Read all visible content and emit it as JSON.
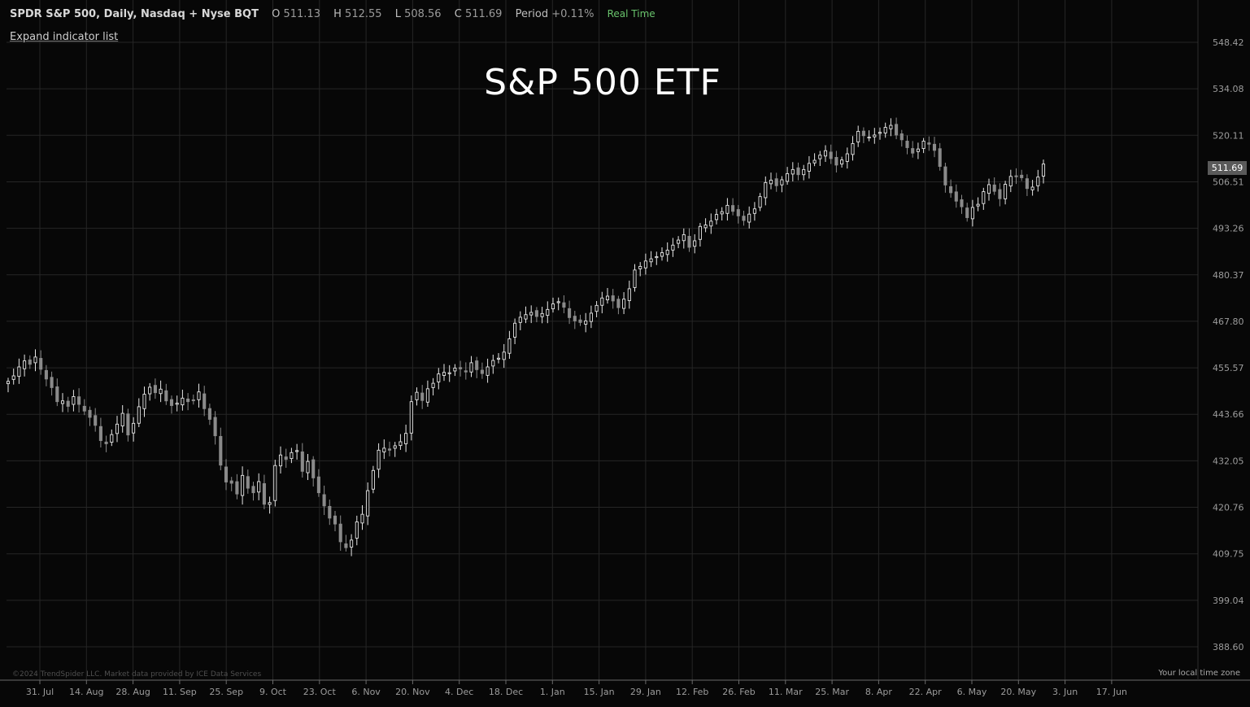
{
  "header": {
    "symbol": "SPDR S&P 500, Daily, Nasdaq + Nyse BQT",
    "o_label": "O",
    "o_value": "511.13",
    "h_label": "H",
    "h_value": "512.55",
    "l_label": "L",
    "l_value": "508.56",
    "c_label": "C",
    "c_value": "511.69",
    "period_label": "Period",
    "period_value": "+0.11%",
    "realtime": "Real Time"
  },
  "expand_label": "Expand indicator list",
  "copyright": "©2024 TrendSpider LLC. Market data provided by ICE Data Services",
  "timezone": "Your local time zone",
  "price_tag": "511.69",
  "colors": {
    "background": "#070707",
    "grid": "#262626",
    "candle": "#e6e6e6",
    "down": "#8a8a8a",
    "realtime": "#69c36c"
  },
  "chart_data": {
    "type": "candlestick",
    "title": "S&P 500 ETF",
    "ylim": [
      383,
      552
    ],
    "y_ticks": [
      "548.42",
      "534.08",
      "520.11",
      "506.51",
      "493.26",
      "480.37",
      "467.80",
      "455.57",
      "443.66",
      "432.05",
      "420.76",
      "409.75",
      "399.04",
      "388.60"
    ],
    "x_ticks": [
      "31. Jul",
      "14. Aug",
      "28. Aug",
      "11. Sep",
      "25. Sep",
      "9. Oct",
      "23. Oct",
      "6. Nov",
      "20. Nov",
      "4. Dec",
      "18. Dec",
      "1. Jan",
      "15. Jan",
      "29. Jan",
      "12. Feb",
      "26. Feb",
      "11. Mar",
      "25. Mar",
      "8. Apr",
      "22. Apr",
      "6. May",
      "20. May",
      "3. Jun",
      "17. Jun"
    ],
    "close_series": [
      452.1,
      453.5,
      455.8,
      457.4,
      456.5,
      458.4,
      455.2,
      452.7,
      450.5,
      446.9,
      447.1,
      445.7,
      448.2,
      446.2,
      444.5,
      442.9,
      440.9,
      437.1,
      436.3,
      438.6,
      441.2,
      443.9,
      438.5,
      441.4,
      445.6,
      448.8,
      450.6,
      449.2,
      450.1,
      447.1,
      445.9,
      446.5,
      447.8,
      446.9,
      447.3,
      449.4,
      445.1,
      442.4,
      438.3,
      431.0,
      426.9,
      426.6,
      424.0,
      428.5,
      425.4,
      424.3,
      427.0,
      421.5,
      421.9,
      430.9,
      433.5,
      432.4,
      434.1,
      434.6,
      429.5,
      431.9,
      427.9,
      424.3,
      421.1,
      418.2,
      416.8,
      412.6,
      411.2,
      413.0,
      417.3,
      419.1,
      424.8,
      429.7,
      434.7,
      435.2,
      434.7,
      435.8,
      436.8,
      438.9,
      446.9,
      449.3,
      447.2,
      450.2,
      451.6,
      454.0,
      454.4,
      454.3,
      455.5,
      455.3,
      454.5,
      456.9,
      455.1,
      454.1,
      455.8,
      457.5,
      458.1,
      459.7,
      463.2,
      467.3,
      468.9,
      469.6,
      470.2,
      469.1,
      469.9,
      471.0,
      472.5,
      473.1,
      471.6,
      468.8,
      467.9,
      467.5,
      467.9,
      470.0,
      472.1,
      474.1,
      474.6,
      473.3,
      471.5,
      473.8,
      476.6,
      481.7,
      482.7,
      484.2,
      484.8,
      485.4,
      486.5,
      487.2,
      488.6,
      490.0,
      491.5,
      488.0,
      489.8,
      493.8,
      494.2,
      495.3,
      497.2,
      498.0,
      499.8,
      498.1,
      496.8,
      495.5,
      497.3,
      498.8,
      502.3,
      506.3,
      507.0,
      505.4,
      507.1,
      508.9,
      510.1,
      508.6,
      510.1,
      511.9,
      512.8,
      514.3,
      515.6,
      513.3,
      511.4,
      512.9,
      514.7,
      517.7,
      521.3,
      520.0,
      519.6,
      520.2,
      521.0,
      522.5,
      523.1,
      520.2,
      518.8,
      516.5,
      514.9,
      516.1,
      518.4,
      517.5,
      515.7,
      511.0,
      505.6,
      503.4,
      501.0,
      499.4,
      496.3,
      499.2,
      500.1,
      503.7,
      505.7,
      503.8,
      501.7,
      505.8,
      508.1,
      508.0,
      507.7,
      504.6,
      505.0,
      507.9,
      511.7
    ]
  }
}
